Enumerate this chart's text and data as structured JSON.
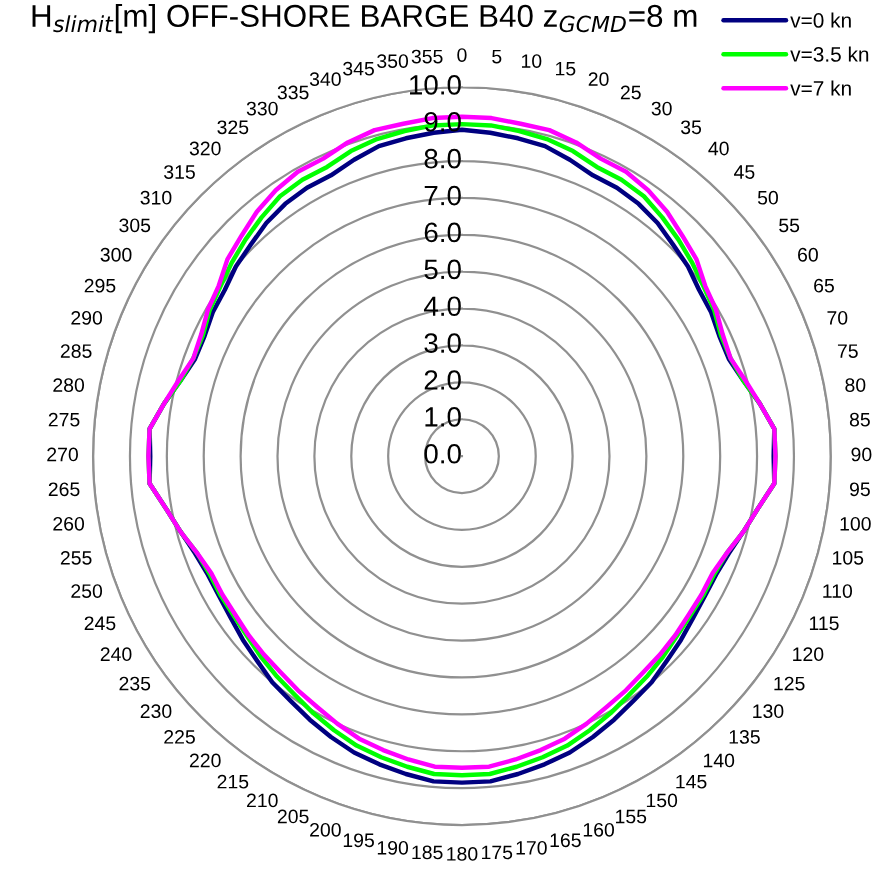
{
  "chart_data": {
    "type": "radar",
    "title": "H$_{slimit}$[m] OFF-SHORE BARGE B40 z$_{GCMD}$=8 m",
    "categories": [
      "0",
      "5",
      "10",
      "15",
      "20",
      "25",
      "30",
      "35",
      "40",
      "45",
      "50",
      "55",
      "60",
      "65",
      "70",
      "75",
      "80",
      "85",
      "90",
      "95",
      "100",
      "105",
      "110",
      "115",
      "120",
      "125",
      "130",
      "135",
      "140",
      "145",
      "150",
      "155",
      "160",
      "165",
      "170",
      "175",
      "180",
      "185",
      "190",
      "195",
      "200",
      "205",
      "210",
      "215",
      "220",
      "225",
      "230",
      "235",
      "240",
      "245",
      "250",
      "255",
      "260",
      "265",
      "270",
      "275",
      "280",
      "285",
      "290",
      "295",
      "300",
      "305",
      "310",
      "315",
      "320",
      "325",
      "330",
      "335",
      "340",
      "345",
      "350",
      "355"
    ],
    "series": [
      {
        "name": "v=0 kn",
        "color": "#000080",
        "values": [
          8.85,
          8.8,
          8.75,
          8.7,
          8.55,
          8.4,
          8.4,
          8.35,
          8.25,
          8.1,
          8.0,
          7.85,
          7.8,
          7.7,
          7.7,
          7.9,
          8.2,
          8.5,
          8.45,
          8.5,
          8.15,
          7.9,
          7.7,
          7.6,
          7.6,
          7.65,
          7.75,
          7.85,
          8.0,
          8.1,
          8.25,
          8.4,
          8.55,
          8.65,
          8.75,
          8.85,
          8.85,
          8.85,
          8.75,
          8.65,
          8.55,
          8.4,
          8.25,
          8.1,
          8.0,
          7.85,
          7.75,
          7.65,
          7.6,
          7.6,
          7.7,
          7.9,
          8.15,
          8.5,
          8.45,
          8.5,
          8.2,
          7.9,
          7.7,
          7.7,
          7.8,
          7.85,
          8.0,
          8.1,
          8.25,
          8.35,
          8.4,
          8.4,
          8.55,
          8.7,
          8.75,
          8.8
        ]
      },
      {
        "name": "v=3.5 kn",
        "color": "#00ff00",
        "values": [
          9.0,
          9.0,
          8.95,
          8.9,
          8.8,
          8.65,
          8.65,
          8.6,
          8.45,
          8.3,
          8.15,
          8.0,
          7.9,
          7.75,
          7.75,
          7.9,
          8.2,
          8.5,
          8.5,
          8.5,
          8.15,
          7.9,
          7.65,
          7.55,
          7.55,
          7.55,
          7.6,
          7.7,
          7.8,
          7.9,
          8.05,
          8.2,
          8.35,
          8.45,
          8.55,
          8.65,
          8.65,
          8.65,
          8.55,
          8.45,
          8.35,
          8.2,
          8.05,
          7.9,
          7.8,
          7.7,
          7.6,
          7.55,
          7.55,
          7.55,
          7.65,
          7.9,
          8.15,
          8.5,
          8.5,
          8.5,
          8.2,
          7.9,
          7.75,
          7.75,
          7.9,
          8.0,
          8.15,
          8.3,
          8.45,
          8.6,
          8.65,
          8.65,
          8.8,
          8.9,
          8.95,
          9.0
        ]
      },
      {
        "name": "v=7 kn",
        "color": "#ff00ff",
        "values": [
          9.2,
          9.2,
          9.15,
          9.15,
          9.05,
          8.9,
          8.9,
          8.8,
          8.65,
          8.45,
          8.3,
          8.05,
          7.95,
          7.8,
          7.75,
          7.95,
          8.2,
          8.5,
          8.5,
          8.5,
          8.15,
          7.9,
          7.65,
          7.5,
          7.5,
          7.5,
          7.55,
          7.6,
          7.65,
          7.75,
          7.85,
          8.0,
          8.15,
          8.25,
          8.35,
          8.45,
          8.45,
          8.45,
          8.35,
          8.25,
          8.15,
          8.0,
          7.85,
          7.75,
          7.65,
          7.6,
          7.55,
          7.5,
          7.5,
          7.5,
          7.65,
          7.9,
          8.15,
          8.5,
          8.5,
          8.5,
          8.2,
          7.95,
          7.75,
          7.8,
          7.95,
          8.05,
          8.3,
          8.45,
          8.65,
          8.8,
          8.9,
          8.9,
          9.05,
          9.15,
          9.15,
          9.2
        ]
      }
    ],
    "ylim": [
      0,
      10
    ],
    "yticks": [
      {
        "value": 0,
        "label": "0.0"
      },
      {
        "value": 1,
        "label": "1.0"
      },
      {
        "value": 2,
        "label": "2.0"
      },
      {
        "value": 3,
        "label": "3.0"
      },
      {
        "value": 4,
        "label": "4.0"
      },
      {
        "value": 5,
        "label": "5.0"
      },
      {
        "value": 6,
        "label": "6.0"
      },
      {
        "value": 7,
        "label": "7.0"
      },
      {
        "value": 8,
        "label": "8.0"
      },
      {
        "value": 9,
        "label": "9.0"
      },
      {
        "value": 10,
        "label": "10.0"
      }
    ],
    "grid": "y",
    "legend": "top right"
  }
}
